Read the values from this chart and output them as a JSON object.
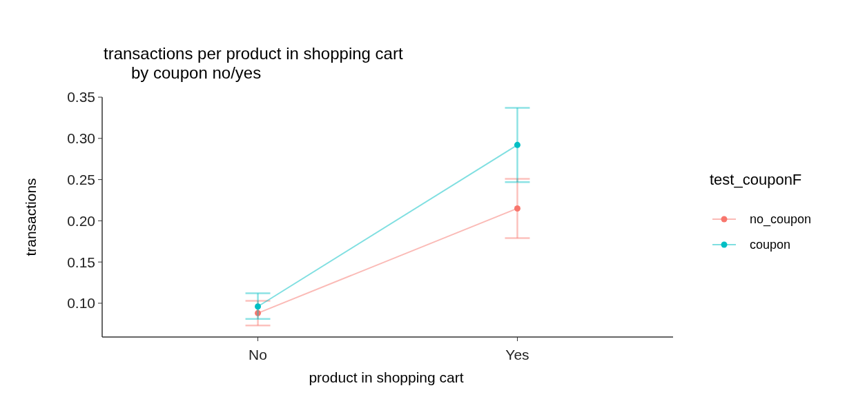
{
  "chart_data": {
    "type": "line",
    "title": "transactions per product in shopping cart\n      by coupon no/yes",
    "xlabel": "product in shopping cart",
    "ylabel": "transactions",
    "legend_title": "test_couponF",
    "categories": [
      "No",
      "Yes"
    ],
    "series": [
      {
        "name": "no_coupon",
        "color": "#f8766d",
        "values": [
          0.088,
          0.215
        ],
        "errors": [
          [
            0.073,
            0.103
          ],
          [
            0.179,
            0.251
          ]
        ]
      },
      {
        "name": "coupon",
        "color": "#00bfc4",
        "values": [
          0.096,
          0.292
        ],
        "errors": [
          [
            0.081,
            0.112
          ],
          [
            0.247,
            0.337
          ]
        ]
      }
    ],
    "ylim": [
      0.059,
      0.35
    ],
    "yticks": [
      {
        "value": 0.1,
        "label": "0.10"
      },
      0.15,
      {
        "value": 0.2,
        "label": "0.20"
      },
      0.25,
      {
        "value": 0.3,
        "label": "0.30"
      },
      0.35
    ],
    "grid": false,
    "legend": "right",
    "marker": "circle",
    "line_style": "solid"
  }
}
